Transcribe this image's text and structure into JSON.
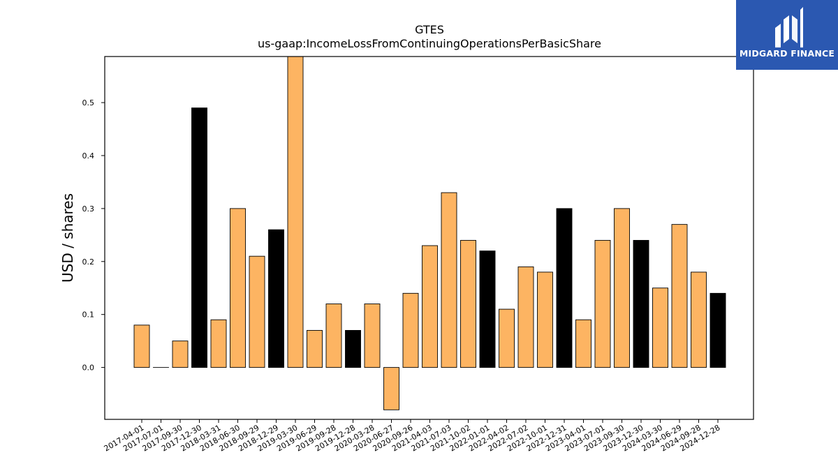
{
  "brand": {
    "name": "MIDGARD FINANCE",
    "logo_icon": "midgard-m-icon",
    "background_color": "#2b58b1"
  },
  "chart_data": {
    "type": "bar",
    "title": "GTES",
    "subtitle": "us-gaap:IncomeLossFromContinuingOperationsPerBasicShare",
    "xlabel": "",
    "ylabel": "USD / shares",
    "ylim": [
      -0.098,
      0.587
    ],
    "yticks": [
      0.0,
      0.1,
      0.2,
      0.3,
      0.4,
      0.5
    ],
    "grid": false,
    "colors": {
      "quarterly": "#fdb462",
      "annual": "#000000",
      "edge": "#000000"
    },
    "categories": [
      "2017-04-01",
      "2017-07-01",
      "2017-09-30",
      "2017-12-30",
      "2018-03-31",
      "2018-06-30",
      "2018-09-29",
      "2018-12-29",
      "2019-03-30",
      "2019-06-29",
      "2019-09-28",
      "2019-12-28",
      "2020-03-28",
      "2020-06-27",
      "2020-09-26",
      "2021-04-03",
      "2021-07-03",
      "2021-10-02",
      "2022-01-01",
      "2022-04-02",
      "2022-07-02",
      "2022-10-01",
      "2022-12-31",
      "2023-04-01",
      "2023-07-01",
      "2023-09-30",
      "2023-12-30",
      "2024-03-30",
      "2024-06-29",
      "2024-09-28",
      "2024-12-28"
    ],
    "values": [
      0.08,
      0.0,
      0.05,
      0.49,
      0.09,
      0.3,
      0.21,
      0.26,
      0.6,
      0.07,
      0.12,
      0.07,
      0.12,
      -0.08,
      0.14,
      0.23,
      0.33,
      0.24,
      0.22,
      0.11,
      0.19,
      0.18,
      0.3,
      0.09,
      0.24,
      0.3,
      0.24,
      0.15,
      0.27,
      0.18,
      0.14
    ],
    "annual": [
      false,
      false,
      false,
      true,
      false,
      false,
      false,
      true,
      false,
      false,
      false,
      true,
      false,
      false,
      false,
      false,
      false,
      false,
      true,
      false,
      false,
      false,
      true,
      false,
      false,
      false,
      true,
      false,
      false,
      false,
      true
    ]
  }
}
